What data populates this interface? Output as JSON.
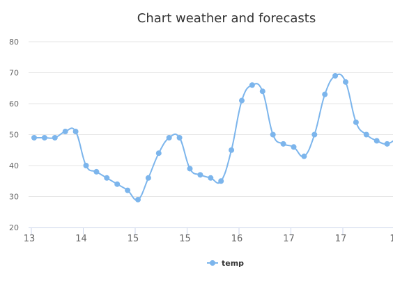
{
  "chart_data": {
    "type": "line",
    "title": "Chart weather and forecasts",
    "xlabel": "",
    "ylabel": "",
    "ylim": [
      20,
      80
    ],
    "yticks": [
      20,
      30,
      40,
      50,
      60,
      70,
      80
    ],
    "xtick_labels": [
      "13",
      "14",
      "15",
      "15",
      "16",
      "17",
      "17",
      "1"
    ],
    "grid": true,
    "legend": {
      "position": "bottom-center"
    },
    "series": [
      {
        "name": "temp",
        "color": "#7cb5ec",
        "values": [
          49,
          49,
          49,
          51,
          51,
          40,
          38,
          36,
          34,
          32,
          29,
          36,
          44,
          49,
          49,
          39,
          37,
          36,
          35,
          45,
          61,
          66,
          64,
          50,
          47,
          46,
          43,
          50,
          63,
          69,
          67,
          54,
          50,
          48,
          47,
          49
        ]
      }
    ]
  }
}
